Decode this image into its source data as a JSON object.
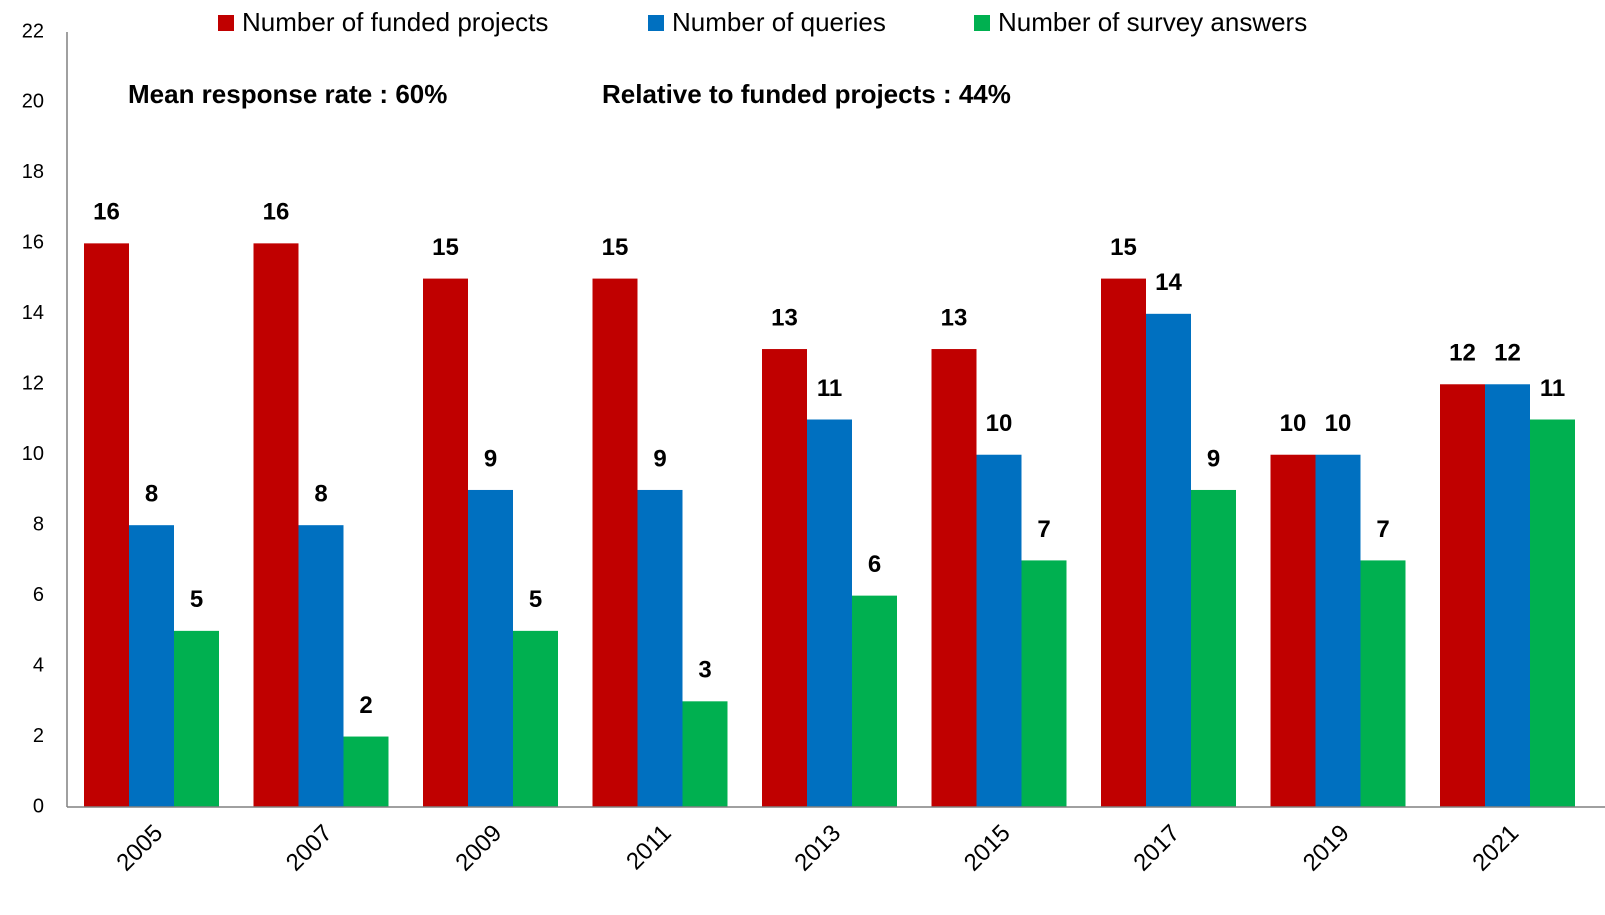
{
  "chart_data": {
    "type": "bar",
    "categories": [
      "2005",
      "2007",
      "2009",
      "2011",
      "2013",
      "2015",
      "2017",
      "2019",
      "2021"
    ],
    "series": [
      {
        "name": "Number of funded projects",
        "color": "#c00000",
        "values": [
          16,
          16,
          15,
          15,
          13,
          13,
          15,
          10,
          12
        ]
      },
      {
        "name": "Number of queries",
        "color": "#0070c0",
        "values": [
          8,
          8,
          9,
          9,
          11,
          10,
          14,
          10,
          12
        ]
      },
      {
        "name": "Number of survey answers",
        "color": "#00b050",
        "values": [
          5,
          2,
          5,
          3,
          6,
          7,
          9,
          7,
          11
        ]
      }
    ],
    "annotations": [
      "Mean response rate : 60%",
      "Relative to funded projects : 44%"
    ],
    "ylim": [
      0,
      22
    ],
    "yticks": [
      0,
      2,
      4,
      6,
      8,
      10,
      12,
      14,
      16,
      18,
      20,
      22
    ],
    "grid": false,
    "legend": "top"
  }
}
